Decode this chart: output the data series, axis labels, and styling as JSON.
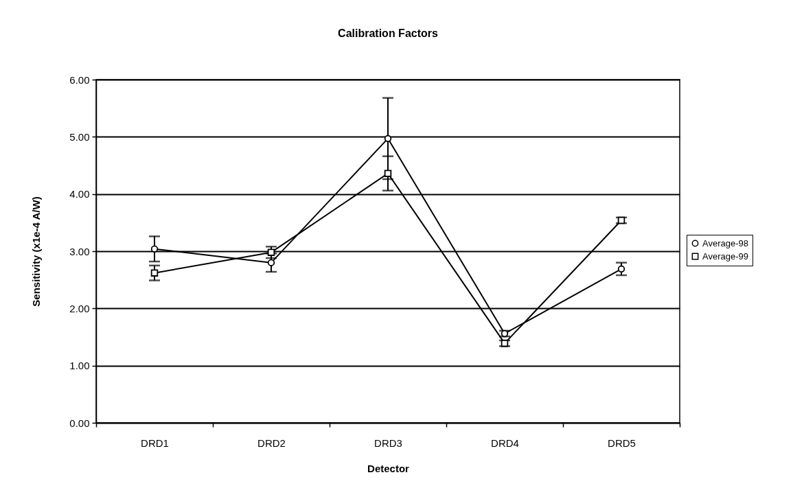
{
  "chart_data": {
    "type": "line",
    "title": "Calibration Factors",
    "xlabel": "Detector",
    "ylabel": "Sensitivity (x1e-4 A/W)",
    "categories": [
      "DRD1",
      "DRD2",
      "DRD3",
      "DRD4",
      "DRD5"
    ],
    "series": [
      {
        "name": "Average-98",
        "color": "#000000",
        "marker": "circle",
        "values": [
          3.04,
          2.8,
          4.97,
          1.56,
          2.69
        ],
        "errors": [
          0.22,
          0.16,
          0.71,
          0.05,
          0.11
        ]
      },
      {
        "name": "Average-99",
        "color": "#000000",
        "marker": "square",
        "values": [
          2.62,
          2.98,
          4.36,
          1.39,
          3.54
        ],
        "errors": [
          0.13,
          0.1,
          0.3,
          0.05,
          0.05
        ]
      }
    ],
    "ylim": [
      0,
      6
    ],
    "yticks": [
      {
        "value": 0,
        "label": "0.00"
      },
      {
        "value": 1,
        "label": "1.00"
      },
      {
        "value": 2,
        "label": "2.00"
      },
      {
        "value": 3,
        "label": "3.00"
      },
      {
        "value": 4,
        "label": "4.00"
      },
      {
        "value": 5,
        "label": "5.00"
      },
      {
        "value": 6,
        "label": "6.00"
      }
    ],
    "grid": "y",
    "legend": "right"
  }
}
